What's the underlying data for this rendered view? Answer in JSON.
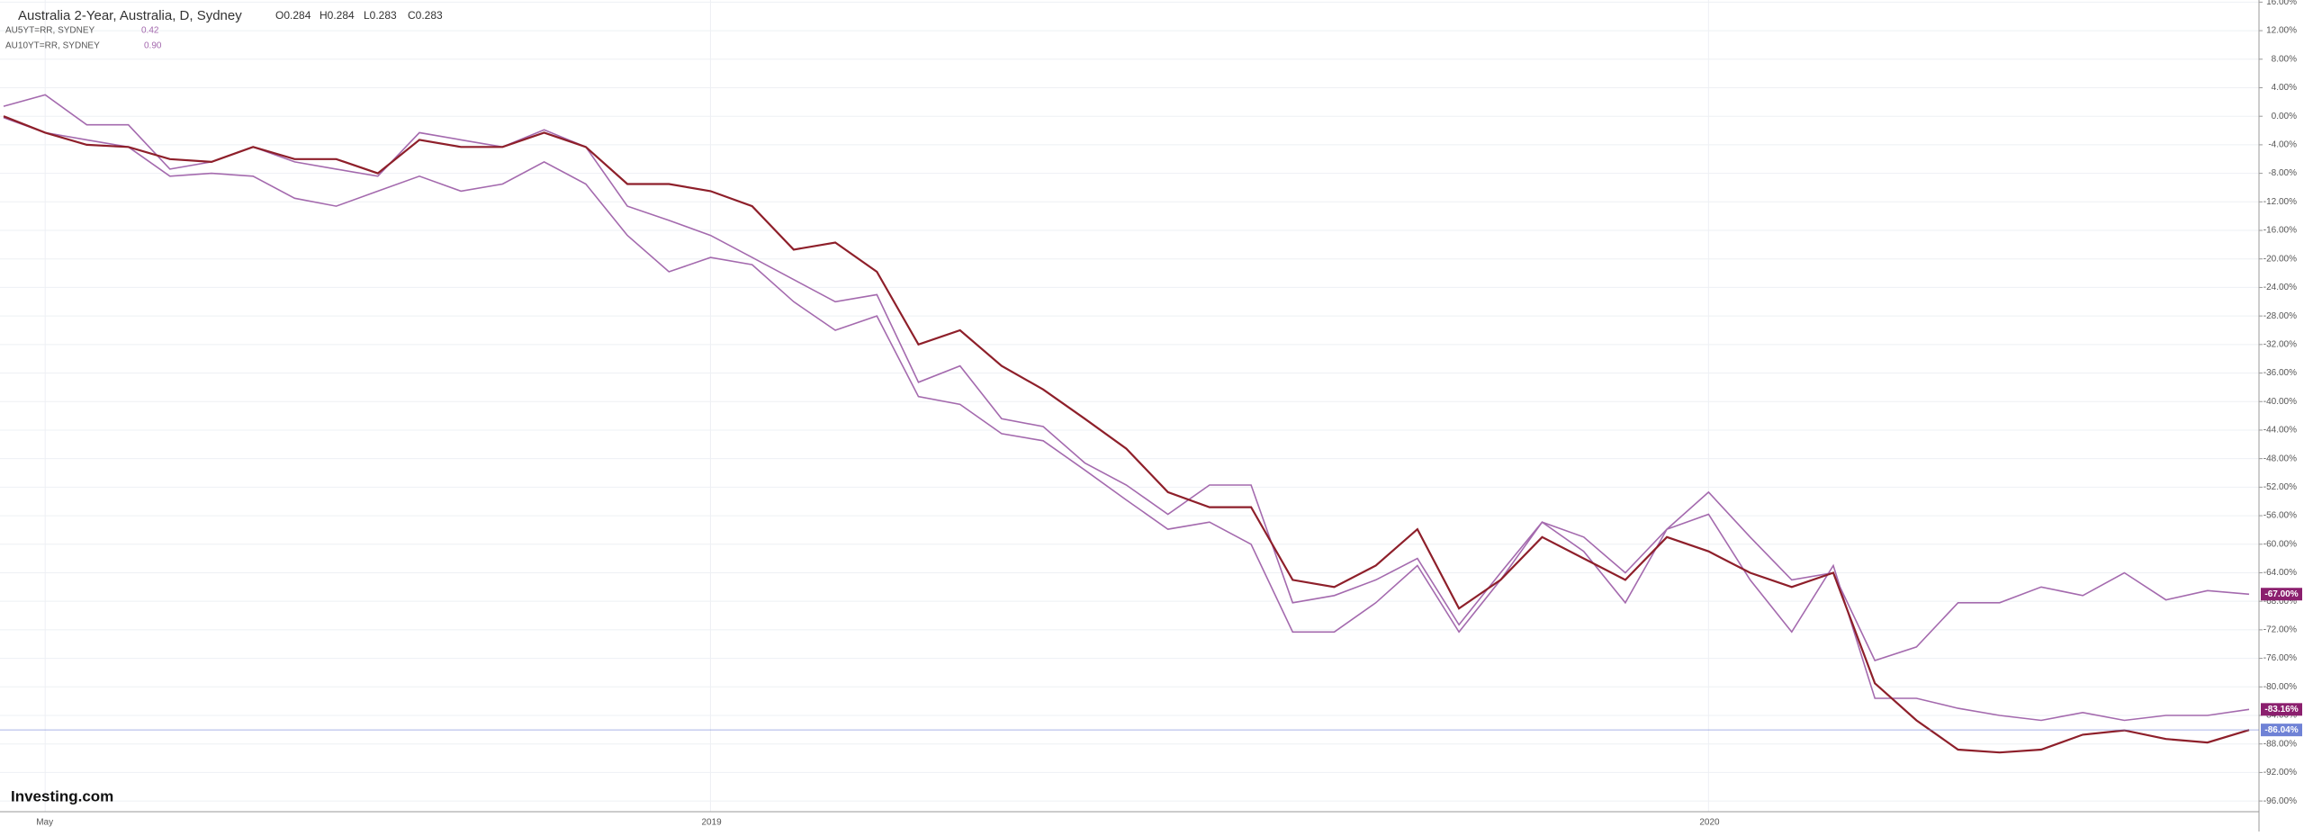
{
  "chart_data": {
    "type": "line",
    "title": "Australia 2-Year, Australia, D, Sydney",
    "ohlc": [
      "O0.284",
      "H0.284",
      "L0.283",
      "C0.283"
    ],
    "brand": "Investing.com",
    "categories": [
      null,
      "May",
      null,
      null,
      null,
      null,
      null,
      null,
      null,
      null,
      null,
      null,
      null,
      null,
      null,
      null,
      null,
      "2019",
      null,
      null,
      null,
      null,
      null,
      null,
      null,
      null,
      null,
      null,
      null,
      null,
      null,
      null,
      null,
      null,
      null,
      null,
      null,
      null,
      null,
      null,
      null,
      "2020",
      null,
      null,
      null,
      null,
      null,
      null,
      null,
      null,
      null,
      null,
      null,
      null,
      null
    ],
    "series": [
      {
        "name": "AU10YT=RR, SYDNEY",
        "legend_value": "0.90",
        "color": "#a46aae",
        "values": [
          1.4,
          3,
          -1.2,
          -1.2,
          -7.4,
          -6.4,
          -4.3,
          -6.4,
          -7.4,
          -8.4,
          -2.3,
          -3.3,
          -4.3,
          -1.9,
          -4.3,
          -12.6,
          -14.6,
          -16.7,
          -19.8,
          -22.9,
          -26,
          -25,
          -37.3,
          -35,
          -42.4,
          -43.5,
          -48.6,
          -51.7,
          -55.8,
          -51.7,
          -51.7,
          -68.2,
          -67.2,
          -65,
          -62,
          -71.3,
          -64,
          -56.9,
          -59,
          -64,
          -57.9,
          -52.7,
          -59,
          -65,
          -64,
          -76.3,
          -74.4,
          -68.2,
          -68.2,
          -66,
          -67.2,
          -64,
          -67.8,
          -66.5,
          -67
        ],
        "last": {
          "value": -67,
          "label": "-67.00%",
          "color": "#8b1f6e"
        }
      },
      {
        "name": "AU5YT=RR, SYDNEY",
        "legend_value": "0.42",
        "color": "#a46aae",
        "values": [
          -0.2,
          -2.3,
          -3.3,
          -4.3,
          -8.4,
          -8,
          -8.4,
          -11.5,
          -12.6,
          -10.5,
          -8.4,
          -10.5,
          -9.5,
          -6.4,
          -9.5,
          -16.7,
          -21.8,
          -19.8,
          -20.8,
          -26,
          -30,
          -28,
          -39.3,
          -40.4,
          -44.5,
          -45.5,
          -49.6,
          -53.8,
          -57.9,
          -56.9,
          -60,
          -72.3,
          -72.3,
          -68.2,
          -63,
          -72.3,
          -65,
          -56.9,
          -61,
          -68.2,
          -57.9,
          -55.8,
          -65,
          -72.3,
          -63,
          -81.6,
          -81.6,
          -83,
          -84,
          -84.7,
          -83.6,
          -84.7,
          -84,
          -84,
          -83.16
        ],
        "last": {
          "value": -83.16,
          "label": "-83.16%",
          "color": "#8b1f6e"
        }
      },
      {
        "name": "Australia 2-Year",
        "color": "#8e1f2a",
        "values": [
          0,
          -2.3,
          -4,
          -4.3,
          -6,
          -6.4,
          -4.3,
          -6,
          -6,
          -8,
          -3.3,
          -4.3,
          -4.3,
          -2.3,
          -4.3,
          -9.5,
          -9.5,
          -10.5,
          -12.6,
          -18.7,
          -17.7,
          -21.8,
          -32,
          -30,
          -35,
          -38.3,
          -42.4,
          -46.6,
          -52.7,
          -54.8,
          -54.8,
          -65,
          -66,
          -63,
          -57.9,
          -69,
          -65,
          -59,
          -62,
          -65,
          -59,
          -61,
          -64,
          -66,
          -64,
          -79.5,
          -84.7,
          -88.8,
          -89.2,
          -88.8,
          -86.7,
          -86.1,
          -87.3,
          -87.8,
          -86.04
        ],
        "last": {
          "value": -86.04,
          "label": "-86.04%",
          "color": "#6f82d6"
        }
      }
    ],
    "ylim": [
      -97.5,
      16.3
    ],
    "yticks": [
      {
        "value": 16,
        "label": "16.00%"
      },
      {
        "value": 12,
        "label": "12.00%"
      },
      {
        "value": 8,
        "label": "8.00%"
      },
      {
        "value": 4,
        "label": "4.00%"
      },
      {
        "value": 0,
        "label": "0.00%"
      },
      {
        "value": -4,
        "label": "-4.00%"
      },
      {
        "value": -8,
        "label": "-8.00%"
      },
      {
        "value": -12,
        "label": "-12.00%"
      },
      {
        "value": -16,
        "label": "-16.00%"
      },
      {
        "value": -20,
        "label": "-20.00%"
      },
      {
        "value": -24,
        "label": "-24.00%"
      },
      {
        "value": -28,
        "label": "-28.00%"
      },
      {
        "value": -32,
        "label": "-32.00%"
      },
      {
        "value": -36,
        "label": "-36.00%"
      },
      {
        "value": -40,
        "label": "-40.00%"
      },
      {
        "value": -44,
        "label": "-44.00%"
      },
      {
        "value": -48,
        "label": "-48.00%"
      },
      {
        "value": -52,
        "label": "-52.00%"
      },
      {
        "value": -56,
        "label": "-56.00%"
      },
      {
        "value": -60,
        "label": "-60.00%"
      },
      {
        "value": -64,
        "label": "-64.00%"
      },
      {
        "value": -68,
        "label": "-68.00%"
      },
      {
        "value": -72,
        "label": "-72.00%"
      },
      {
        "value": -76,
        "label": "-76.00%"
      },
      {
        "value": -80,
        "label": "-80.00%"
      },
      {
        "value": -84,
        "label": "-84.00%"
      },
      {
        "value": -88,
        "label": "-88.00%"
      },
      {
        "value": -92,
        "label": "-92.00%"
      },
      {
        "value": -96,
        "label": "-96.00%"
      }
    ],
    "grid": true
  }
}
